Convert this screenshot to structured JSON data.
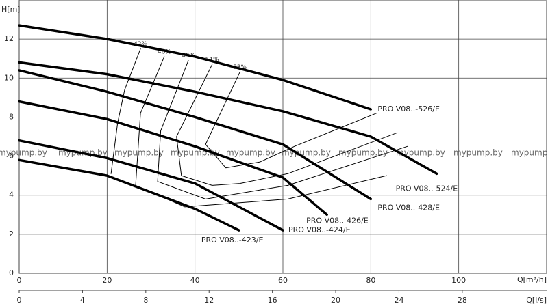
{
  "chart_data": {
    "type": "line",
    "y_label": "H[m]",
    "x_label": "Q[m³/h]",
    "x2_label": "Q[l/s]",
    "watermark": "mypump.by",
    "xlim": [
      0,
      120
    ],
    "xticks": [
      0,
      20,
      40,
      60,
      80,
      100
    ],
    "ylim": [
      0,
      14
    ],
    "yticks": [
      0,
      2,
      4,
      6,
      8,
      10,
      12
    ],
    "x2lim": [
      0,
      33.33
    ],
    "x2ticks": [
      0,
      4,
      8,
      12,
      16,
      20,
      24,
      28
    ],
    "grid": true,
    "series": [
      {
        "name": "PRO V08..-526/E",
        "color": "#000000",
        "x": [
          0,
          20,
          40,
          60,
          80
        ],
        "values": [
          12.7,
          12.0,
          11.1,
          9.9,
          8.4
        ]
      },
      {
        "name": "PRO V08..-524/E",
        "color": "#000000",
        "x": [
          0,
          20,
          40,
          60,
          80,
          95
        ],
        "values": [
          10.8,
          10.2,
          9.3,
          8.3,
          7.0,
          5.1
        ]
      },
      {
        "name": "PRO V08..-428/E",
        "color": "#000000",
        "x": [
          0,
          20,
          40,
          60,
          80
        ],
        "values": [
          10.4,
          9.3,
          8.0,
          6.6,
          3.8
        ]
      },
      {
        "name": "PRO V08..-426/E",
        "color": "#000000",
        "x": [
          0,
          20,
          40,
          60,
          70
        ],
        "values": [
          8.8,
          7.9,
          6.5,
          4.9,
          3.0
        ]
      },
      {
        "name": "PRO V08..-424/E",
        "color": "#000000",
        "x": [
          0,
          20,
          40,
          60
        ],
        "values": [
          6.8,
          5.9,
          4.6,
          2.2
        ]
      },
      {
        "name": "PRO V08..-423/E",
        "color": "#000000",
        "x": [
          0,
          20,
          40,
          50
        ],
        "values": [
          5.8,
          5.0,
          3.3,
          2.2
        ]
      }
    ],
    "efficiency_series": [
      {
        "name": "42%",
        "color": "#000000",
        "x": [
          27.6,
          24.0,
          22.4,
          20.9
        ],
        "values": [
          11.5,
          9.4,
          7.7,
          5.1
        ]
      },
      {
        "name": "46%",
        "color": "#000000",
        "x": [
          33.0,
          27.6,
          26.5,
          37.7,
          61.1,
          83.6
        ],
        "values": [
          11.1,
          8.2,
          4.5,
          3.4,
          3.8,
          5.0
        ]
      },
      {
        "name": "49%",
        "color": "#000000",
        "x": [
          38.5,
          32.2,
          31.5,
          42.4,
          61.1,
          88.3
        ],
        "values": [
          10.9,
          7.3,
          4.7,
          3.8,
          4.5,
          6.5
        ]
      },
      {
        "name": "51%",
        "color": "#000000",
        "x": [
          43.9,
          35.8,
          36.9,
          43.9,
          50.2,
          61.1,
          86.0
        ],
        "values": [
          10.7,
          7.0,
          5.0,
          4.5,
          4.6,
          5.1,
          7.2
        ]
      },
      {
        "name": "53%",
        "color": "#000000",
        "x": [
          50.2,
          42.4,
          47.0,
          54.8,
          62.6,
          81.3
        ],
        "values": [
          10.3,
          6.6,
          5.4,
          5.7,
          6.5,
          8.2
        ]
      }
    ]
  }
}
